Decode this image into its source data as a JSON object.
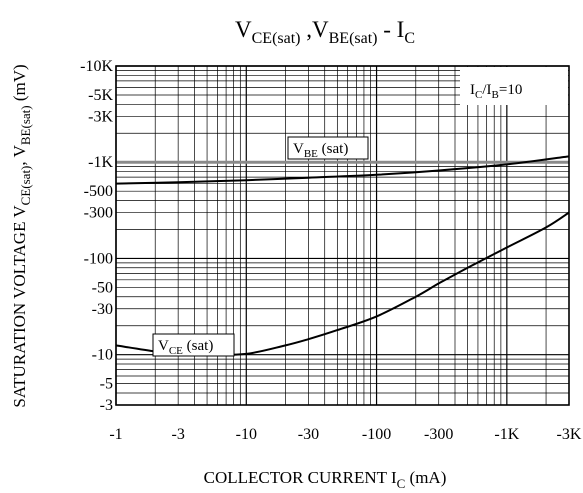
{
  "chart_data": {
    "type": "line",
    "title": {
      "main": "V",
      "sub1": "CE(sat)",
      "mid": " ,V",
      "sub2": "BE(sat)",
      "tail": " - I",
      "sub3": "C"
    },
    "xlabel": {
      "main": "COLLECTOR CURRENT I",
      "sub": "C",
      "tail": " (mA)"
    },
    "ylabel": {
      "main": "SATURATION VOLTAGE V",
      "sub1": "CE(sat)",
      "mid": ", V",
      "sub2": "BE(sat)",
      "tail": " (mV)"
    },
    "x_scale": "log",
    "y_scale": "log",
    "xlim": [
      -1,
      -3000
    ],
    "ylim": [
      -3,
      -10000
    ],
    "grid": true,
    "x_ticks": [
      {
        "value": -1,
        "label": "-1"
      },
      {
        "value": -3,
        "label": "-3"
      },
      {
        "value": -10,
        "label": "-10"
      },
      {
        "value": -30,
        "label": "-30"
      },
      {
        "value": -100,
        "label": "-100"
      },
      {
        "value": -300,
        "label": "-300"
      },
      {
        "value": -1000,
        "label": "-1K"
      },
      {
        "value": -3000,
        "label": "-3K"
      }
    ],
    "y_ticks": [
      {
        "value": -3,
        "label": "-3"
      },
      {
        "value": -5,
        "label": "-5"
      },
      {
        "value": -10,
        "label": "-10"
      },
      {
        "value": -30,
        "label": "-30"
      },
      {
        "value": -50,
        "label": "-50"
      },
      {
        "value": -100,
        "label": "-100"
      },
      {
        "value": -300,
        "label": "-300"
      },
      {
        "value": -500,
        "label": "-500"
      },
      {
        "value": -1000,
        "label": "-1K"
      },
      {
        "value": -3000,
        "label": "-3K"
      },
      {
        "value": -5000,
        "label": "-5K"
      },
      {
        "value": -10000,
        "label": "-10K"
      }
    ],
    "annotations": {
      "condition": {
        "main": "I",
        "sub1": "C",
        "mid": "/I",
        "sub2": "B",
        "tail": "=10"
      },
      "vbe_label": {
        "main": "V",
        "sub": "BE",
        "tail": " (sat)"
      },
      "vce_label": {
        "main": "V",
        "sub": "CE",
        "tail": " (sat)"
      }
    },
    "series": [
      {
        "key": "vbe",
        "x": [
          -1,
          -3,
          -10,
          -30,
          -100,
          -300,
          -1000,
          -3000
        ],
        "y": [
          -600,
          -620,
          -650,
          -690,
          -740,
          -820,
          -950,
          -1150
        ]
      },
      {
        "key": "vce",
        "x": [
          -1,
          -2,
          -3,
          -5,
          -10,
          -20,
          -30,
          -50,
          -100,
          -200,
          -300,
          -500,
          -1000,
          -2000,
          -3000
        ],
        "y": [
          -12.5,
          -10.8,
          -10.3,
          -10.0,
          -10.2,
          -12.5,
          -14.5,
          -18,
          -25,
          -40,
          -55,
          -80,
          -130,
          -210,
          -300
        ]
      }
    ],
    "colors": {
      "curve": "#000000",
      "grid": "#000000",
      "highlight_line": "#8a8a8a"
    }
  }
}
